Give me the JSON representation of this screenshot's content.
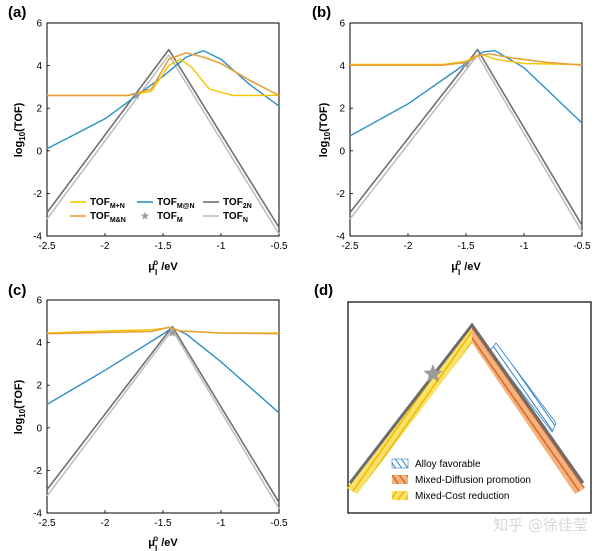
{
  "chart_data": [
    {
      "panel": "(a)",
      "type": "line",
      "xlabel": "μ",
      "xlabel_superscript": "o",
      "xlabel_subscript": "I",
      "xlabel_unit": " /eV",
      "ylabel": "log",
      "ylabel_subscript": "10",
      "ylabel_tail": "(TOF)",
      "xlim": [
        -2.5,
        -0.5
      ],
      "ylim": [
        -4,
        6
      ],
      "xticks": [
        -2.5,
        -2,
        -1.5,
        -1,
        -0.5
      ],
      "yticks": [
        -4,
        -2,
        0,
        2,
        4,
        6
      ],
      "star": {
        "x": -1.73,
        "y": 2.6
      },
      "legend": {
        "position": "bottom",
        "items": [
          {
            "main": "TOF",
            "sub": "M+N",
            "kind": "line",
            "color": "#f5c400"
          },
          {
            "main": "TOF",
            "sub": "M@N",
            "kind": "line",
            "color": "#2f8fc4"
          },
          {
            "main": "TOF",
            "sub": "2N",
            "kind": "line",
            "color": "#707070"
          },
          {
            "main": "TOF",
            "sub": "M&N",
            "kind": "line",
            "color": "#e8a23a"
          },
          {
            "main": "TOF",
            "sub": "M",
            "kind": "star",
            "color": "#a0a0a0"
          },
          {
            "main": "TOF",
            "sub": "N",
            "kind": "line",
            "color": "#c0c0c0"
          }
        ]
      },
      "series": [
        {
          "key": "N",
          "color": "#c0c0c0",
          "x": [
            -2.5,
            -1.45,
            -0.5
          ],
          "y": [
            -3.2,
            4.5,
            -3.9
          ]
        },
        {
          "key": "2N",
          "color": "#707070",
          "x": [
            -2.5,
            -1.45,
            -0.5
          ],
          "y": [
            -2.9,
            4.75,
            -3.6
          ]
        },
        {
          "key": "M@N",
          "color": "#2f8fc4",
          "x": [
            -2.5,
            -2.0,
            -1.5,
            -1.3,
            -1.15,
            -1.0,
            -0.75,
            -0.5
          ],
          "y": [
            0.1,
            1.5,
            3.5,
            4.4,
            4.7,
            4.3,
            3.1,
            2.1
          ]
        },
        {
          "key": "M+N",
          "color": "#f5c400",
          "x": [
            -2.5,
            -1.8,
            -1.6,
            -1.45,
            -1.35,
            -1.25,
            -1.1,
            -0.9,
            -0.5
          ],
          "y": [
            2.6,
            2.6,
            2.8,
            4.0,
            4.3,
            3.9,
            2.9,
            2.6,
            2.6
          ]
        },
        {
          "key": "M&N",
          "color": "#e8a23a",
          "x": [
            -2.5,
            -1.8,
            -1.6,
            -1.45,
            -1.3,
            -1.15,
            -1.0,
            -0.75,
            -0.5
          ],
          "y": [
            2.6,
            2.6,
            2.9,
            4.3,
            4.6,
            4.4,
            4.1,
            3.3,
            2.6
          ]
        }
      ]
    },
    {
      "panel": "(b)",
      "type": "line",
      "xlabel": "μ",
      "xlabel_superscript": "o",
      "xlabel_subscript": "I",
      "xlabel_unit": " /eV",
      "ylabel": "log",
      "ylabel_subscript": "10",
      "ylabel_tail": "(TOF)",
      "xlim": [
        -2.5,
        -0.5
      ],
      "ylim": [
        -4,
        6
      ],
      "xticks": [
        -2.5,
        -2,
        -1.5,
        -1,
        -0.5
      ],
      "yticks": [
        -4,
        -2,
        0,
        2,
        4,
        6
      ],
      "star": {
        "x": -1.5,
        "y": 4.05
      },
      "series": [
        {
          "key": "N",
          "color": "#c0c0c0",
          "x": [
            -2.5,
            -1.4,
            -0.5
          ],
          "y": [
            -3.2,
            4.5,
            -3.8
          ]
        },
        {
          "key": "2N",
          "color": "#707070",
          "x": [
            -2.5,
            -1.4,
            -0.5
          ],
          "y": [
            -2.9,
            4.75,
            -3.5
          ]
        },
        {
          "key": "M@N",
          "color": "#2f8fc4",
          "x": [
            -2.5,
            -2.0,
            -1.5,
            -1.35,
            -1.25,
            -1.0,
            -0.75,
            -0.5
          ],
          "y": [
            0.7,
            2.2,
            4.1,
            4.65,
            4.7,
            3.9,
            2.6,
            1.3
          ]
        },
        {
          "key": "M+N",
          "color": "#f5c400",
          "x": [
            -2.5,
            -1.7,
            -1.5,
            -1.42,
            -1.35,
            -1.25,
            -1.0,
            -0.5
          ],
          "y": [
            4.05,
            4.05,
            4.2,
            4.45,
            4.5,
            4.3,
            4.1,
            4.05
          ]
        },
        {
          "key": "M&N",
          "color": "#e8a23a",
          "x": [
            -2.5,
            -1.7,
            -1.5,
            -1.4,
            -1.3,
            -1.1,
            -0.8,
            -0.5
          ],
          "y": [
            4.02,
            4.02,
            4.15,
            4.45,
            4.55,
            4.35,
            4.15,
            4.02
          ]
        }
      ]
    },
    {
      "panel": "(c)",
      "type": "line",
      "xlabel": "μ",
      "xlabel_superscript": "o",
      "xlabel_subscript": "I",
      "xlabel_unit": " /eV",
      "ylabel": "log",
      "ylabel_subscript": "10",
      "ylabel_tail": "(TOF)",
      "xlim": [
        -2.5,
        -0.5
      ],
      "ylim": [
        -4,
        6
      ],
      "xticks": [
        -2.5,
        -2,
        -1.5,
        -1,
        -0.5
      ],
      "yticks": [
        -4,
        -2,
        0,
        2,
        4,
        6
      ],
      "star": {
        "x": -1.42,
        "y": 4.45
      },
      "series": [
        {
          "key": "N",
          "color": "#c0c0c0",
          "x": [
            -2.5,
            -1.42,
            -0.5
          ],
          "y": [
            -3.2,
            4.6,
            -3.8
          ]
        },
        {
          "key": "2N",
          "color": "#707070",
          "x": [
            -2.5,
            -1.42,
            -0.5
          ],
          "y": [
            -2.9,
            4.75,
            -3.5
          ]
        },
        {
          "key": "M@N",
          "color": "#2f8fc4",
          "x": [
            -2.5,
            -2.0,
            -1.5,
            -1.42,
            -1.3,
            -1.0,
            -0.75,
            -0.5
          ],
          "y": [
            1.1,
            2.7,
            4.4,
            4.7,
            4.4,
            3.1,
            1.9,
            0.7
          ]
        },
        {
          "key": "M+N",
          "color": "#f5c400",
          "x": [
            -2.5,
            -2.0,
            -1.6,
            -1.45,
            -1.35,
            -1.0,
            -0.5
          ],
          "y": [
            4.45,
            4.55,
            4.6,
            4.7,
            4.55,
            4.45,
            4.45
          ]
        },
        {
          "key": "M&N",
          "color": "#e8a23a",
          "x": [
            -2.5,
            -2.0,
            -1.6,
            -1.45,
            -1.35,
            -1.0,
            -0.5
          ],
          "y": [
            4.42,
            4.48,
            4.52,
            4.72,
            4.55,
            4.45,
            4.42
          ]
        }
      ]
    }
  ],
  "panel_d": {
    "panel": "(d)",
    "legend": [
      {
        "label": "Alloy favorable",
        "color": "#3a8ad0"
      },
      {
        "label": "Mixed-Diffusion promotion",
        "color": "#e98a3e"
      },
      {
        "label": "Mixed-Cost reduction",
        "color": "#f3d21b"
      }
    ]
  },
  "watermark": "知乎 @徐佳莹"
}
